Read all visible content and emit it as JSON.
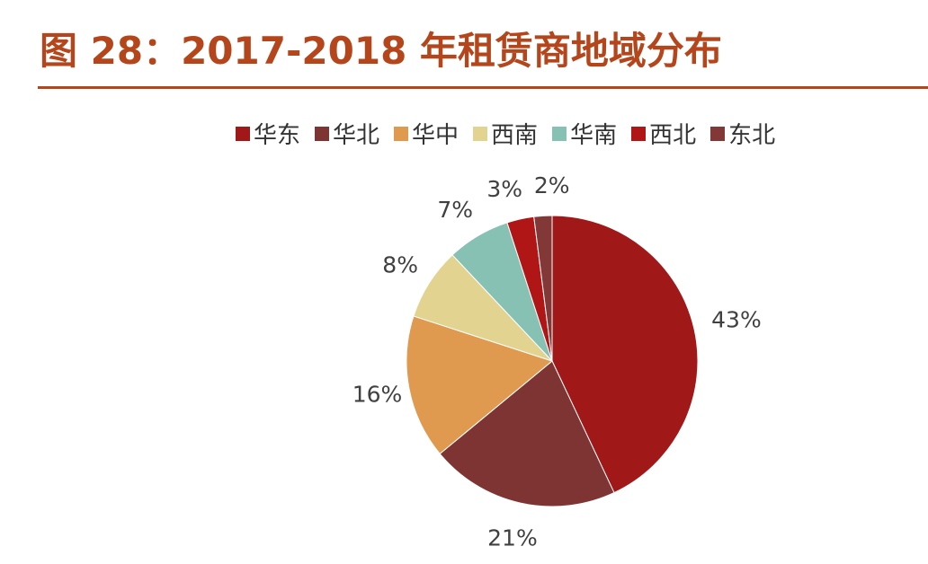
{
  "header": {
    "title": "图 28：2017-2018 年租赁商地域分布"
  },
  "chart_data": {
    "type": "pie",
    "labels": [
      "华东",
      "华北",
      "华中",
      "西南",
      "华南",
      "西北",
      "东北"
    ],
    "values": [
      43,
      21,
      16,
      8,
      7,
      3,
      2
    ],
    "value_labels": [
      "43%",
      "21%",
      "16%",
      "8%",
      "7%",
      "3%",
      "2%"
    ],
    "colors": [
      "#a01818",
      "#7e3433",
      "#e09a50",
      "#e3d391",
      "#86c1b4",
      "#b01616",
      "#823837"
    ],
    "legend_position": "top"
  }
}
